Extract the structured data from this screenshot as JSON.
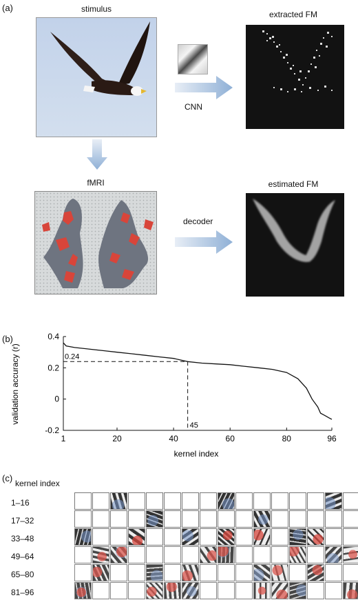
{
  "panel_a": {
    "label": "(a)",
    "stimulus_caption": "stimulus",
    "extracted_caption": "extracted FM",
    "cnn_label": "CNN",
    "fmri_caption": "fMRI",
    "estimated_caption": "estimated FM",
    "decoder_label": "decoder"
  },
  "panel_b": {
    "label": "(b)",
    "annotation_y": "0.24",
    "annotation_x": "45"
  },
  "panel_c": {
    "label": "(c)",
    "header": "kernel index",
    "rows": [
      "1–16",
      "17–32",
      "33–48",
      "49–64",
      "65–80",
      "81–96"
    ]
  },
  "chart_data": {
    "type": "line",
    "xlabel": "kernel index",
    "ylabel": "validation accuracy (r)",
    "xlim": [
      1,
      96
    ],
    "ylim": [
      -0.2,
      0.4
    ],
    "xticks": [
      "1",
      "20",
      "40",
      "60",
      "80",
      "96"
    ],
    "yticks": [
      "-0.2",
      "0",
      "0.2",
      "0.4"
    ],
    "grid": false,
    "series": [
      {
        "x": [
          1,
          2,
          5,
          10,
          15,
          20,
          25,
          30,
          35,
          40,
          45,
          50,
          55,
          60,
          65,
          70,
          75,
          80,
          84,
          87,
          89,
          91,
          92,
          93,
          94,
          95,
          96
        ],
        "y": [
          0.36,
          0.34,
          0.33,
          0.32,
          0.31,
          0.3,
          0.29,
          0.28,
          0.27,
          0.26,
          0.24,
          0.23,
          0.225,
          0.22,
          0.21,
          0.2,
          0.19,
          0.17,
          0.13,
          0.07,
          0.0,
          -0.05,
          -0.09,
          -0.1,
          -0.11,
          -0.12,
          -0.13
        ]
      }
    ],
    "annotations": [
      {
        "x": 45,
        "y": 0.24,
        "text_y": "0.24",
        "text_x": "45"
      }
    ]
  }
}
